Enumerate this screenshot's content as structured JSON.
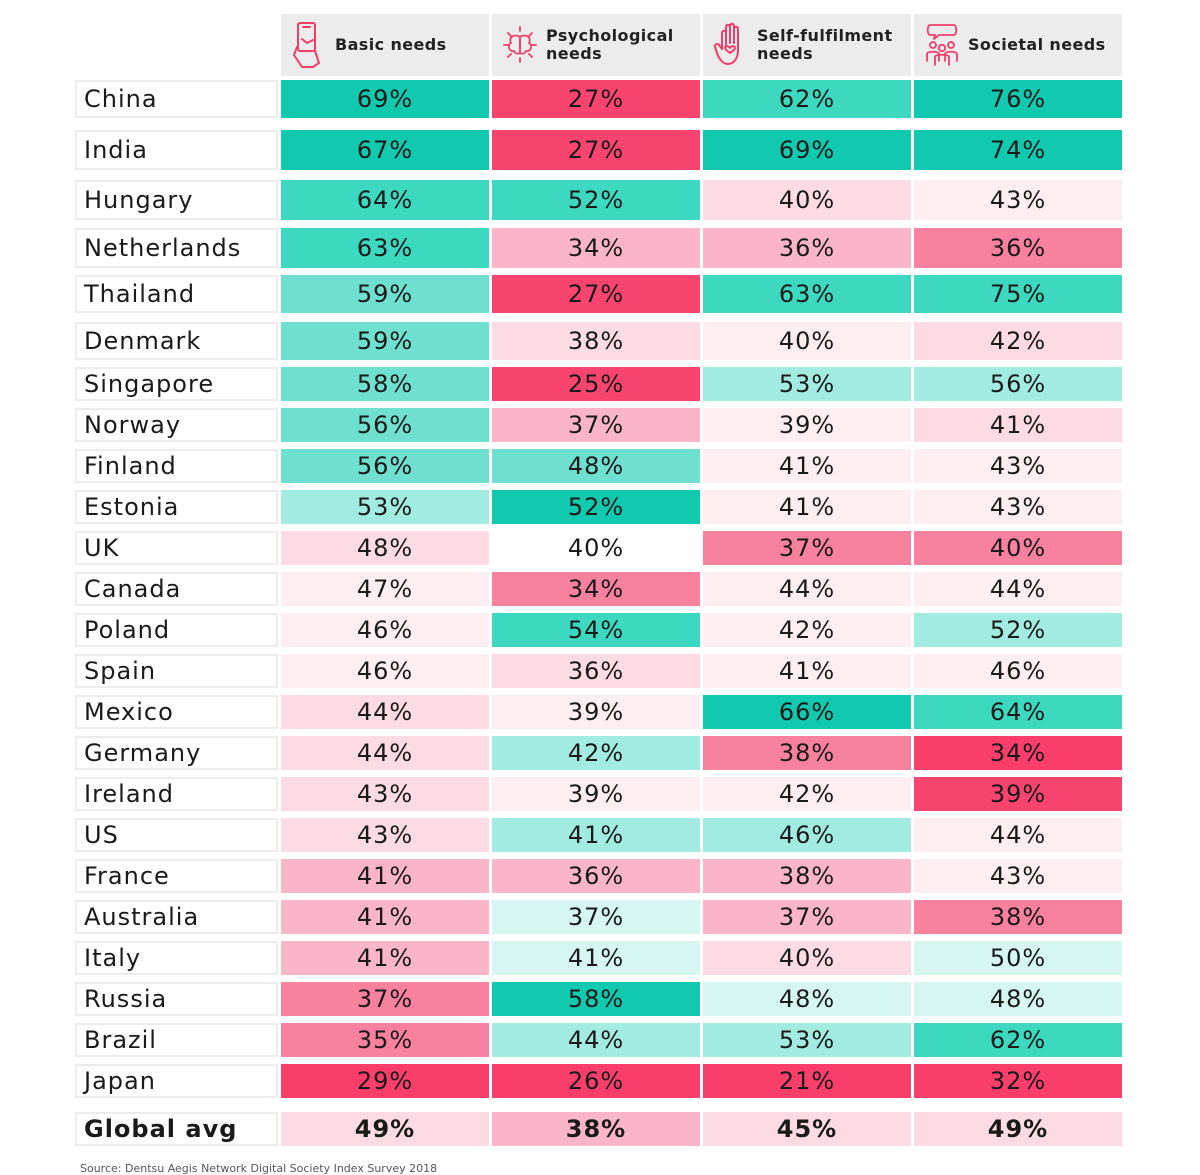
{
  "chart_data": {
    "type": "table",
    "columns": [
      {
        "label": "Basic needs",
        "icon": "phone-hand-icon"
      },
      {
        "label": "Psychological needs",
        "icon": "brain-icon"
      },
      {
        "label": "Self-fulfilment needs",
        "icon": "hand-heart-icon"
      },
      {
        "label": "Societal needs",
        "icon": "people-speech-icon"
      }
    ],
    "rows": [
      {
        "country": "China",
        "values": [
          "69%",
          "27%",
          "62%",
          "76%"
        ]
      },
      {
        "country": "India",
        "values": [
          "67%",
          "27%",
          "69%",
          "74%"
        ]
      },
      {
        "country": "Hungary",
        "values": [
          "64%",
          "52%",
          "40%",
          "43%"
        ]
      },
      {
        "country": "Netherlands",
        "values": [
          "63%",
          "34%",
          "36%",
          "36%"
        ]
      },
      {
        "country": "Thailand",
        "values": [
          "59%",
          "27%",
          "63%",
          "75%"
        ]
      },
      {
        "country": "Denmark",
        "values": [
          "59%",
          "38%",
          "40%",
          "42%"
        ]
      },
      {
        "country": "Singapore",
        "values": [
          "58%",
          "25%",
          "53%",
          "56%"
        ]
      },
      {
        "country": "Norway",
        "values": [
          "56%",
          "37%",
          "39%",
          "41%"
        ]
      },
      {
        "country": "Finland",
        "values": [
          "56%",
          "48%",
          "41%",
          "43%"
        ]
      },
      {
        "country": "Estonia",
        "values": [
          "53%",
          "52%",
          "41%",
          "43%"
        ]
      },
      {
        "country": "UK",
        "values": [
          "48%",
          "40%",
          "37%",
          "40%"
        ]
      },
      {
        "country": "Canada",
        "values": [
          "47%",
          "34%",
          "44%",
          "44%"
        ]
      },
      {
        "country": "Poland",
        "values": [
          "46%",
          "54%",
          "42%",
          "52%"
        ]
      },
      {
        "country": "Spain",
        "values": [
          "46%",
          "36%",
          "41%",
          "46%"
        ]
      },
      {
        "country": "Mexico",
        "values": [
          "44%",
          "39%",
          "66%",
          "64%"
        ]
      },
      {
        "country": "Germany",
        "values": [
          "44%",
          "42%",
          "38%",
          "34%"
        ]
      },
      {
        "country": "Ireland",
        "values": [
          "43%",
          "39%",
          "42%",
          "39%"
        ]
      },
      {
        "country": "US",
        "values": [
          "43%",
          "41%",
          "46%",
          "44%"
        ]
      },
      {
        "country": "France",
        "values": [
          "41%",
          "36%",
          "38%",
          "43%"
        ]
      },
      {
        "country": "Australia",
        "values": [
          "41%",
          "37%",
          "37%",
          "38%"
        ]
      },
      {
        "country": "Italy",
        "values": [
          "41%",
          "41%",
          "40%",
          "50%"
        ]
      },
      {
        "country": "Russia",
        "values": [
          "37%",
          "58%",
          "48%",
          "48%"
        ]
      },
      {
        "country": "Brazil",
        "values": [
          "35%",
          "44%",
          "53%",
          "62%"
        ]
      },
      {
        "country": "Japan",
        "values": [
          "29%",
          "26%",
          "21%",
          "32%"
        ]
      }
    ],
    "average": {
      "country": "Global avg",
      "values": [
        "49%",
        "38%",
        "45%",
        "49%"
      ]
    },
    "palette": {
      "T4": "#11c9ae",
      "T3": "#3dd8c0",
      "T2": "#6fe0d0",
      "T1": "#a2ebe1",
      "T0": "#d5f6f1",
      "N": "#ffffff",
      "P0": "#fdeef2",
      "P1": "#fcdbe4",
      "P2": "#fab6c8",
      "P3": "#f8819f",
      "P4": "#fa4470",
      "P5": "#fa3e6a"
    },
    "cell_colors": [
      [
        "T4",
        "P4",
        "T3",
        "T4"
      ],
      [
        "T4",
        "P4",
        "T4",
        "T4"
      ],
      [
        "T3",
        "T3",
        "P1",
        "P0"
      ],
      [
        "T3",
        "P2",
        "P2",
        "P3"
      ],
      [
        "T2",
        "P4",
        "T3",
        "T3"
      ],
      [
        "T2",
        "P1",
        "P0",
        "P1"
      ],
      [
        "T2",
        "P4",
        "T1",
        "T1"
      ],
      [
        "T2",
        "P2",
        "P0",
        "P1"
      ],
      [
        "T2",
        "T2",
        "P0",
        "P0"
      ],
      [
        "T1",
        "T4",
        "P0",
        "P0"
      ],
      [
        "P1",
        "N",
        "P3",
        "P3"
      ],
      [
        "P0",
        "P3",
        "P0",
        "P0"
      ],
      [
        "P0",
        "T3",
        "P0",
        "T1"
      ],
      [
        "P0",
        "P1",
        "P0",
        "P0"
      ],
      [
        "P1",
        "P0",
        "T4",
        "T3"
      ],
      [
        "P1",
        "T1",
        "P3",
        "P5"
      ],
      [
        "P1",
        "P0",
        "P0",
        "P4"
      ],
      [
        "P1",
        "T1",
        "T1",
        "P0"
      ],
      [
        "P2",
        "P2",
        "P2",
        "P0"
      ],
      [
        "P2",
        "T0",
        "P2",
        "P3"
      ],
      [
        "P2",
        "T0",
        "P1",
        "T0"
      ],
      [
        "P3",
        "T4",
        "T0",
        "T0"
      ],
      [
        "P3",
        "T1",
        "T1",
        "T3"
      ],
      [
        "P5",
        "P5",
        "P5",
        "P5"
      ]
    ],
    "average_colors": [
      "P1",
      "P2",
      "P1",
      "P1"
    ]
  },
  "source": "Source: Dentsu Aegis Network Digital Society Index Survey 2018"
}
